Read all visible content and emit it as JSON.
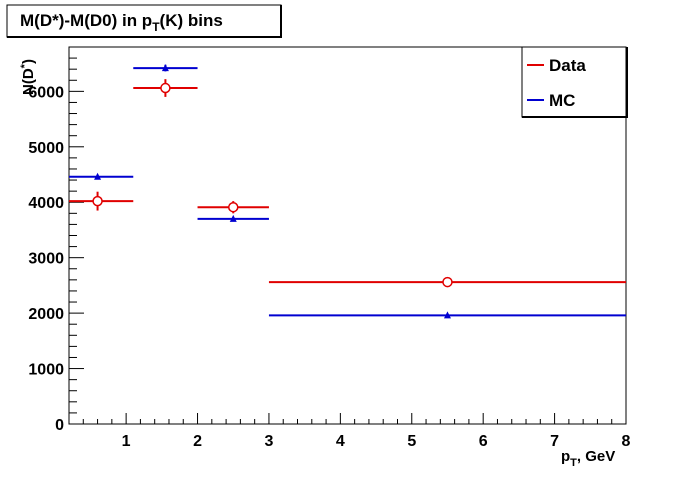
{
  "chart_data": {
    "type": "scatter",
    "title": "M(D*)-M(D0) in p_T(K) bins",
    "ylabel": "N(D*)",
    "xlabel": "p_T, GeV",
    "xlim": [
      0.2,
      8
    ],
    "ylim": [
      0,
      6800
    ],
    "x_ticks": [
      1,
      2,
      3,
      4,
      5,
      6,
      7,
      8
    ],
    "y_ticks": [
      0,
      1000,
      2000,
      3000,
      4000,
      5000,
      6000
    ],
    "grid": false,
    "legend_position": "top-right",
    "series": [
      {
        "name": "Data",
        "color": "#e00000",
        "marker": "open-circle",
        "points": [
          {
            "x": 0.6,
            "xlo": 0.2,
            "xhi": 1.1,
            "y": 4020,
            "yerr": 170
          },
          {
            "x": 1.55,
            "xlo": 1.1,
            "xhi": 2.0,
            "y": 6060,
            "yerr": 160
          },
          {
            "x": 2.5,
            "xlo": 2.0,
            "xhi": 3.0,
            "y": 3910,
            "yerr": 110
          },
          {
            "x": 5.5,
            "xlo": 3.0,
            "xhi": 8.0,
            "y": 2560,
            "yerr": 40
          }
        ]
      },
      {
        "name": "MC",
        "color": "#0000d0",
        "marker": "triangle",
        "points": [
          {
            "x": 0.6,
            "xlo": 0.2,
            "xhi": 1.1,
            "y": 4460,
            "yerr": 40
          },
          {
            "x": 1.55,
            "xlo": 1.1,
            "xhi": 2.0,
            "y": 6420,
            "yerr": 60
          },
          {
            "x": 2.5,
            "xlo": 2.0,
            "xhi": 3.0,
            "y": 3700,
            "yerr": 30
          },
          {
            "x": 5.5,
            "xlo": 3.0,
            "xhi": 8.0,
            "y": 1960,
            "yerr": 20
          }
        ]
      }
    ]
  }
}
